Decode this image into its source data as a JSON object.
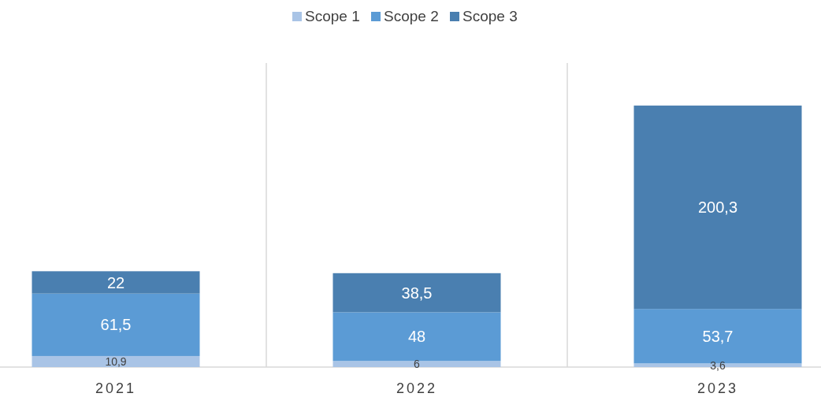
{
  "chart_data": {
    "type": "bar",
    "stacked": true,
    "categories": [
      "2021",
      "2022",
      "2023"
    ],
    "series": [
      {
        "name": "Scope 1",
        "color": "#a9c4e6",
        "values": [
          10.9,
          6,
          3.6
        ],
        "value_labels": [
          "10,9",
          "6",
          "3,6"
        ]
      },
      {
        "name": "Scope 2",
        "color": "#5b9bd5",
        "values": [
          61.5,
          48,
          53.7
        ],
        "value_labels": [
          "61,5",
          "48",
          "53,7"
        ]
      },
      {
        "name": "Scope 3",
        "color": "#4a7fb0",
        "values": [
          22,
          38.5,
          200.3
        ],
        "value_labels": [
          "22",
          "38,5",
          "200,3"
        ]
      }
    ],
    "legend": "top",
    "grid": "x"
  }
}
